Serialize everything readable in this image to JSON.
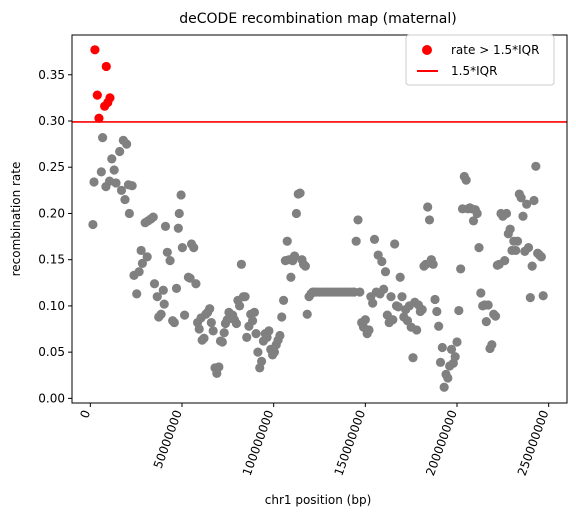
{
  "chart_data": {
    "type": "scatter",
    "title": "deCODE recombination map (maternal)",
    "xlabel": "chr1 position (bp)",
    "ylabel": "recombination rate",
    "xlim": [
      -10000000,
      260000000
    ],
    "ylim": [
      -0.005,
      0.393
    ],
    "xticks": [
      0,
      50000000,
      100000000,
      150000000,
      200000000,
      250000000
    ],
    "xtick_labels": [
      "0",
      "50000000",
      "100000000",
      "150000000",
      "200000000",
      "250000000"
    ],
    "yticks": [
      0.0,
      0.05,
      0.1,
      0.15,
      0.2,
      0.25,
      0.3,
      0.35
    ],
    "ytick_labels": [
      "0.00",
      "0.05",
      "0.10",
      "0.15",
      "0.20",
      "0.25",
      "0.30",
      "0.35"
    ],
    "grid": false,
    "legend_position": "top-right",
    "threshold": {
      "name": "1.5*IQR",
      "value": 0.299,
      "color": "#ff0000"
    },
    "series": [
      {
        "name": "rate > 1.5*IQR",
        "color": "#ff0000",
        "x": [
          2500000,
          3800000,
          4700000,
          7800000,
          8700000,
          9500000,
          10700000
        ],
        "y": [
          0.377,
          0.328,
          0.303,
          0.316,
          0.359,
          0.32,
          0.325
        ]
      },
      {
        "name": "",
        "color": "#808080",
        "x": [
          1400000,
          2000000,
          6000000,
          6700000,
          8500000,
          10500000,
          11700000,
          13000000,
          14000000,
          16000000,
          17000000,
          18000000,
          18900000,
          19800000,
          20800000,
          21300000,
          22800000,
          23800000,
          25300000,
          26600000,
          27700000,
          28400000,
          29900000,
          31000000,
          31500000,
          33000000,
          34300000,
          35000000,
          36500000,
          37300000,
          38600000,
          39800000,
          40300000,
          41000000,
          42000000,
          43500000,
          44900000,
          45800000,
          47000000,
          48000000,
          48500000,
          49500000,
          50200000,
          51400000,
          53500000,
          54400000,
          55200000,
          56400000,
          57600000,
          58500000,
          59400000,
          60400000,
          61000000,
          62000000,
          63000000,
          64000000,
          65100000,
          66000000,
          67000000,
          68000000,
          69000000,
          70100000,
          71000000,
          72000000,
          73000000,
          73700000,
          74700000,
          75600000,
          76600000,
          77600000,
          78600000,
          79700000,
          80500000,
          81400000,
          82400000,
          83500000,
          84400000,
          85300000,
          86500000,
          87500000,
          88500000,
          89500000,
          90400000,
          91400000,
          92400000,
          93400000,
          94400000,
          95400000,
          96400000,
          97400000,
          98400000,
          99400000,
          100400000,
          101400000,
          102400000,
          103400000,
          104400000,
          105400000,
          106400000,
          107400000,
          108400000,
          109400000,
          110400000,
          111400000,
          112400000,
          113400000,
          114400000,
          115400000,
          116300000,
          117300000,
          118300000,
          119300000,
          120300000,
          121300000,
          122300000,
          123500000,
          125000000,
          126500000,
          128000000,
          129500000,
          131000000,
          132500000,
          134000000,
          135500000,
          137000000,
          138500000,
          140000000,
          141500000,
          143000000,
          144000000,
          145000000,
          146000000,
          147000000,
          148000000,
          149000000,
          150000000,
          151000000,
          152000000,
          153000000,
          154000000,
          155000000,
          156000000,
          157000000,
          158000000,
          159000000,
          160000000,
          161000000,
          162000000,
          163000000,
          164000000,
          165000000,
          166000000,
          167000000,
          168000000,
          169000000,
          170000000,
          171000000,
          172000000,
          173000000,
          174000000,
          175000000,
          176000000,
          177000000,
          178000000,
          179000000,
          180000000,
          181000000,
          182000000,
          183000000,
          184000000,
          185000000,
          186000000,
          187000000,
          188000000,
          189000000,
          190000000,
          191000000,
          192000000,
          193000000,
          194000000,
          195000000,
          196000000,
          197000000,
          198000000,
          199000000,
          200000000,
          201000000,
          202000000,
          203000000,
          204000000,
          205000000,
          206000000,
          207000000,
          208000000,
          209000000,
          210000000,
          211000000,
          212000000,
          213000000,
          214000000,
          215000000,
          216000000,
          217000000,
          218000000,
          219000000,
          220000000,
          221000000,
          222000000,
          223000000,
          224000000,
          225000000,
          226000000,
          227000000,
          228000000,
          229000000,
          230000000,
          231000000,
          232000000,
          233000000,
          234000000,
          235000000,
          236000000,
          237000000,
          238000000,
          239000000,
          240000000,
          241000000,
          242000000,
          243000000,
          244000000,
          245000000,
          246000000,
          247000000
        ],
        "y": [
          0.188,
          0.234,
          0.245,
          0.282,
          0.229,
          0.235,
          0.259,
          0.247,
          0.233,
          0.267,
          0.225,
          0.279,
          0.215,
          0.275,
          0.231,
          0.2,
          0.23,
          0.133,
          0.113,
          0.137,
          0.16,
          0.146,
          0.19,
          0.153,
          0.192,
          0.194,
          0.196,
          0.124,
          0.11,
          0.088,
          0.091,
          0.117,
          0.102,
          0.186,
          0.158,
          0.149,
          0.084,
          0.082,
          0.119,
          0.184,
          0.2,
          0.22,
          0.163,
          0.09,
          0.131,
          0.13,
          0.167,
          0.163,
          0.124,
          0.082,
          0.075,
          0.087,
          0.063,
          0.065,
          0.091,
          0.093,
          0.097,
          0.082,
          0.073,
          0.033,
          0.027,
          0.034,
          0.062,
          0.061,
          0.071,
          0.081,
          0.085,
          0.093,
          0.089,
          0.09,
          0.085,
          0.081,
          0.106,
          0.1,
          0.145,
          0.11,
          0.11,
          0.066,
          0.078,
          0.091,
          0.084,
          0.093,
          0.07,
          0.05,
          0.033,
          0.04,
          0.062,
          0.07,
          0.066,
          0.073,
          0.053,
          0.047,
          0.05,
          0.058,
          0.063,
          0.068,
          0.088,
          0.106,
          0.149,
          0.17,
          0.15,
          0.131,
          0.149,
          0.154,
          0.2,
          0.221,
          0.222,
          0.15,
          0.145,
          0.143,
          0.091,
          0.11,
          0.113,
          0.115,
          0.115,
          0.115,
          0.115,
          0.115,
          0.115,
          0.115,
          0.115,
          0.115,
          0.115,
          0.115,
          0.115,
          0.115,
          0.115,
          0.115,
          0.115,
          0.115,
          0.17,
          0.193,
          0.115,
          0.082,
          0.077,
          0.085,
          0.07,
          0.074,
          0.11,
          0.103,
          0.172,
          0.115,
          0.155,
          0.113,
          0.148,
          0.118,
          0.137,
          0.09,
          0.082,
          0.11,
          0.085,
          0.167,
          0.1,
          0.099,
          0.131,
          0.11,
          0.088,
          0.096,
          0.084,
          0.1,
          0.077,
          0.044,
          0.104,
          0.074,
          0.101,
          0.094,
          0.096,
          0.143,
          0.145,
          0.207,
          0.193,
          0.15,
          0.145,
          0.107,
          0.094,
          0.078,
          0.039,
          0.055,
          0.012,
          0.026,
          0.022,
          0.035,
          0.053,
          0.038,
          0.045,
          0.061,
          0.095,
          0.14,
          0.205,
          0.24,
          0.236,
          0.205,
          0.206,
          0.205,
          0.192,
          0.204,
          0.2,
          0.163,
          0.114,
          0.1,
          0.101,
          0.083,
          0.101,
          0.054,
          0.058,
          0.091,
          0.089,
          0.144,
          0.145,
          0.2,
          0.197,
          0.149,
          0.2,
          0.178,
          0.183,
          0.16,
          0.17,
          0.16,
          0.17,
          0.221,
          0.217,
          0.197,
          0.159,
          0.21,
          0.163,
          0.109,
          0.143,
          0.214,
          0.251,
          0.157,
          0.155,
          0.153,
          0.111
        ]
      }
    ]
  }
}
